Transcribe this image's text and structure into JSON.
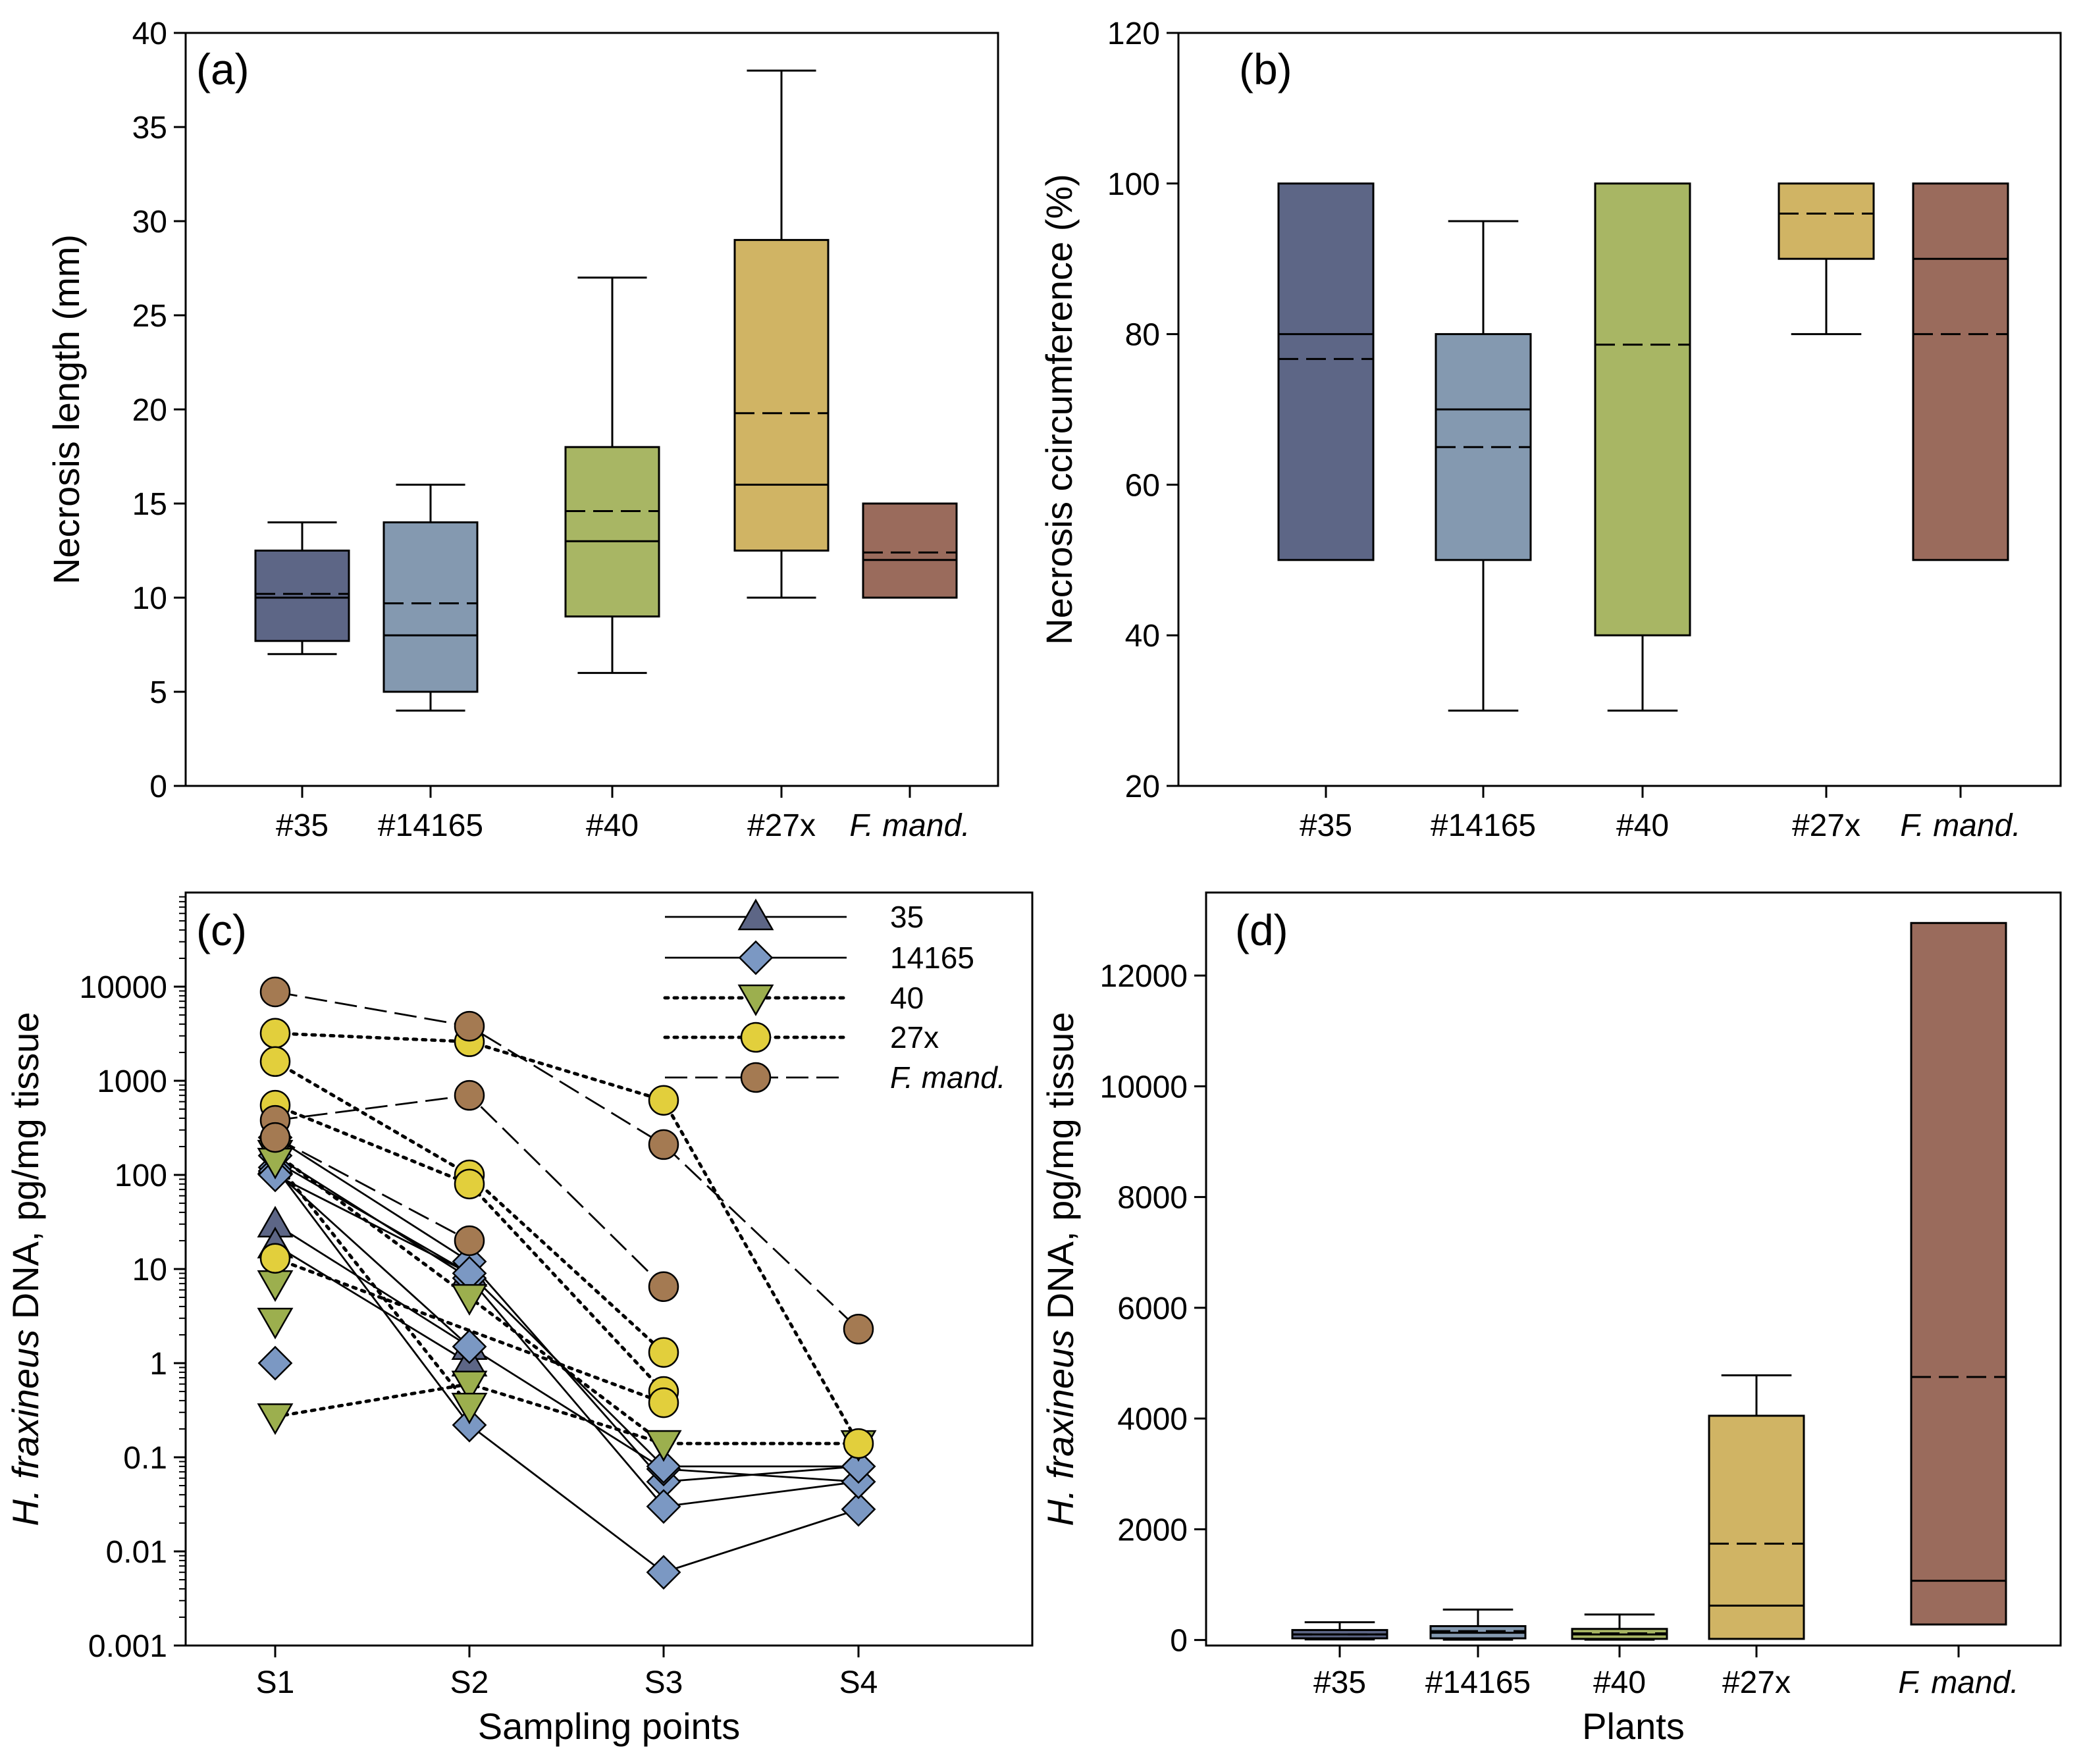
{
  "chart_data": [
    {
      "panel": "(a)",
      "type": "box",
      "title": "",
      "xlabel": "",
      "ylabel": "Necrosis length (mm)",
      "ylim": [
        0,
        40
      ],
      "yticks": [
        0,
        5,
        10,
        15,
        20,
        25,
        30,
        35,
        40
      ],
      "categories": [
        "#35",
        "#14165",
        "#40",
        "#27x",
        "F. mand."
      ],
      "category_italic": [
        false,
        false,
        false,
        false,
        true
      ],
      "colors": [
        "#5d6686",
        "#8499b0",
        "#a8b664",
        "#d0b464",
        "#9a6b5c"
      ],
      "boxes": [
        {
          "q1": 7.7,
          "median": 10.0,
          "mean": 10.2,
          "q3": 12.5,
          "whisker_low": 7.0,
          "whisker_high": 14.0
        },
        {
          "q1": 5.0,
          "median": 8.0,
          "mean": 9.7,
          "q3": 14.0,
          "whisker_low": 4.0,
          "whisker_high": 16.0
        },
        {
          "q1": 9.0,
          "median": 13.0,
          "mean": 14.6,
          "q3": 18.0,
          "whisker_low": 6.0,
          "whisker_high": 27.0
        },
        {
          "q1": 12.5,
          "median": 16.0,
          "mean": 19.8,
          "q3": 29.0,
          "whisker_low": 10.0,
          "whisker_high": 38.0
        },
        {
          "q1": 10.0,
          "median": 12.0,
          "mean": 12.4,
          "q3": 15.0,
          "whisker_low": null,
          "whisker_high": null
        }
      ]
    },
    {
      "panel": "(b)",
      "type": "box",
      "title": "",
      "xlabel": "",
      "ylabel": "Necrosis ccircumference (%)",
      "ylim": [
        20,
        120
      ],
      "yticks": [
        20,
        40,
        60,
        80,
        100,
        120
      ],
      "categories": [
        "#35",
        "#14165",
        "#40",
        "#27x",
        "F. mand."
      ],
      "category_italic": [
        false,
        false,
        false,
        false,
        true
      ],
      "colors": [
        "#5d6686",
        "#8499b0",
        "#a8b664",
        "#d0b464",
        "#9a6b5c"
      ],
      "boxes": [
        {
          "q1": 50,
          "median": 80,
          "mean": 76.7,
          "q3": 100,
          "whisker_low": null,
          "whisker_high": null
        },
        {
          "q1": 50,
          "median": 70,
          "mean": 65,
          "q3": 80,
          "whisker_low": 30,
          "whisker_high": 95
        },
        {
          "q1": 40,
          "median": null,
          "mean": 78.6,
          "q3": 100,
          "whisker_low": 30,
          "whisker_high": null
        },
        {
          "q1": 90,
          "median": null,
          "mean": 96,
          "q3": 100,
          "whisker_low": 80,
          "whisker_high": null
        },
        {
          "q1": 50,
          "median": 90,
          "mean": 80,
          "q3": 100,
          "whisker_low": null,
          "whisker_high": null
        }
      ]
    },
    {
      "panel": "(c)",
      "type": "line",
      "scale": "log",
      "xlabel": "Sampling points",
      "ylabel_italic": "H. fraxineus",
      "ylabel_rest": " DNA, pg/mg tissue",
      "ylim": [
        0.001,
        100000
      ],
      "yticks": [
        0.001,
        0.01,
        0.1,
        1,
        10,
        100,
        1000,
        10000
      ],
      "ytick_labels": [
        "0.001",
        "0.01",
        "0.1",
        "1",
        "10",
        "100",
        "1000",
        "10000"
      ],
      "x": [
        "S1",
        "S2",
        "S3",
        "S4"
      ],
      "legend_position": "top-right",
      "groups": [
        {
          "name": "35",
          "italic": false,
          "marker": "triangle-up",
          "color": "#5d6686",
          "line": "solid",
          "series": [
            [
              30,
              1.5,
              null,
              null
            ],
            [
              18,
              1.0,
              null,
              null
            ],
            [
              140,
              9,
              null,
              null
            ]
          ]
        },
        {
          "name": "14165",
          "italic": false,
          "marker": "diamond",
          "color": "#7b98c3",
          "line": "solid",
          "series": [
            [
              250,
              12,
              0.055,
              0.08
            ],
            [
              120,
              0.22,
              0.006,
              0.028
            ],
            [
              160,
              8,
              0.03,
              0.055
            ],
            [
              110,
              1.5,
              0.075,
              0.055
            ],
            [
              100,
              9,
              0.08,
              0.08
            ],
            [
              1.0,
              null,
              null,
              null
            ]
          ]
        },
        {
          "name": "40",
          "italic": false,
          "marker": "triangle-down",
          "color": "#9caf4e",
          "line": "dotted",
          "series": [
            [
              0.27,
              0.6,
              0.14,
              0.14
            ],
            [
              170,
              5,
              0.14,
              null
            ],
            [
              140,
              0.35,
              null,
              null
            ],
            [
              7,
              null,
              null,
              null
            ],
            [
              2.8,
              null,
              null,
              null
            ]
          ]
        },
        {
          "name": "27x",
          "italic": false,
          "marker": "circle",
          "color": "#e2cf3c",
          "line": "dotted",
          "series": [
            [
              3200,
              2600,
              620,
              0.14
            ],
            [
              1600,
              100,
              1.3,
              null
            ],
            [
              550,
              80,
              0.5,
              null
            ],
            [
              13,
              null,
              0.38,
              null
            ]
          ]
        },
        {
          "name": "F. mand.",
          "italic": true,
          "marker": "circle",
          "color": "#a47a52",
          "line": "dashed",
          "series": [
            [
              8800,
              3800,
              210,
              2.3
            ],
            [
              380,
              700,
              6.5,
              null
            ],
            [
              250,
              20,
              null,
              null
            ]
          ]
        }
      ]
    },
    {
      "panel": "(d)",
      "type": "box",
      "xlabel": "Plants",
      "ylabel_italic": "H. fraxineus",
      "ylabel_rest": " DNA, pg/mg tissue",
      "ylim": [
        -100,
        13500
      ],
      "yticks": [
        0,
        2000,
        4000,
        6000,
        8000,
        10000,
        12000
      ],
      "categories": [
        "#35",
        "#14165",
        "#40",
        "#27x",
        "F. mand."
      ],
      "category_italic": [
        false,
        false,
        false,
        false,
        true
      ],
      "colors": [
        "#5d6686",
        "#8499b0",
        "#a8b664",
        "#d0b464",
        "#9a6b5c"
      ],
      "boxes": [
        {
          "q1": 30,
          "median": 100,
          "mean": 100,
          "q3": 180,
          "whisker_low": 10,
          "whisker_high": 320
        },
        {
          "q1": 30,
          "median": 130,
          "mean": 160,
          "q3": 250,
          "whisker_low": 5,
          "whisker_high": 550
        },
        {
          "q1": 20,
          "median": 100,
          "mean": 120,
          "q3": 200,
          "whisker_low": 5,
          "whisker_high": 460
        },
        {
          "q1": 20,
          "median": 620,
          "mean": 1740,
          "q3": 4050,
          "whisker_low": null,
          "whisker_high": 4780
        },
        {
          "q1": 280,
          "median": 1070,
          "mean": 4750,
          "q3": 12950,
          "whisker_low": null,
          "whisker_high": null
        }
      ]
    }
  ]
}
